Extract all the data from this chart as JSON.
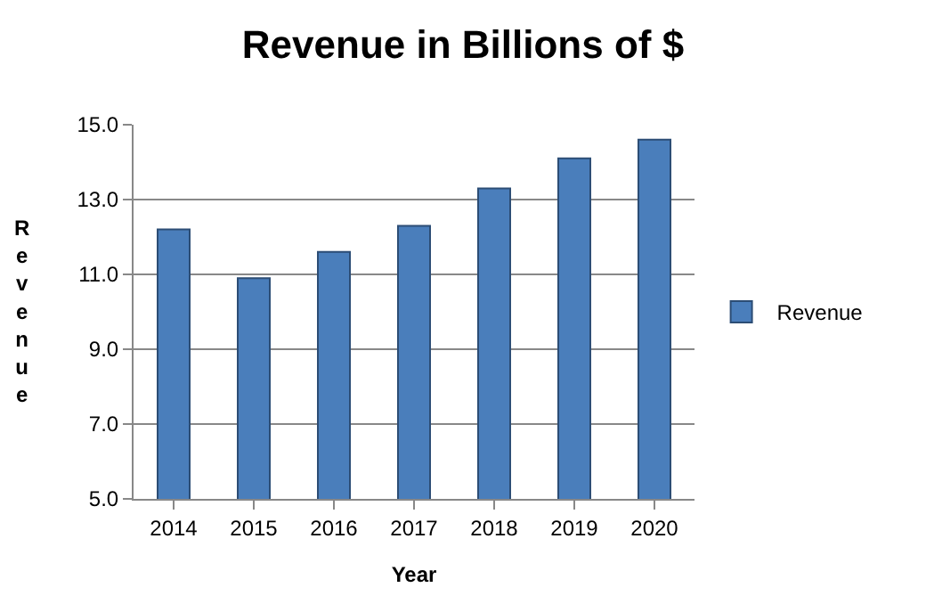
{
  "chart_data": {
    "type": "bar",
    "title": "Revenue in Billions of $",
    "xlabel": "Year",
    "ylabel": "Revenue",
    "categories": [
      "2014",
      "2015",
      "2016",
      "2017",
      "2018",
      "2019",
      "2020"
    ],
    "series": [
      {
        "name": "Revenue",
        "color": "#4a7ebb",
        "values": [
          12.2,
          10.9,
          11.6,
          12.3,
          13.3,
          14.1,
          14.6
        ]
      }
    ],
    "ylim": [
      5,
      15
    ],
    "yticks": [
      {
        "value": 5,
        "label": "5.0"
      },
      {
        "value": 7,
        "label": "7.0"
      },
      {
        "value": 9,
        "label": "9.0"
      },
      {
        "value": 11,
        "label": "11.0"
      },
      {
        "value": 13,
        "label": "13.0"
      },
      {
        "value": 15,
        "label": "15.0"
      }
    ],
    "grid": "y",
    "legend": "right"
  }
}
